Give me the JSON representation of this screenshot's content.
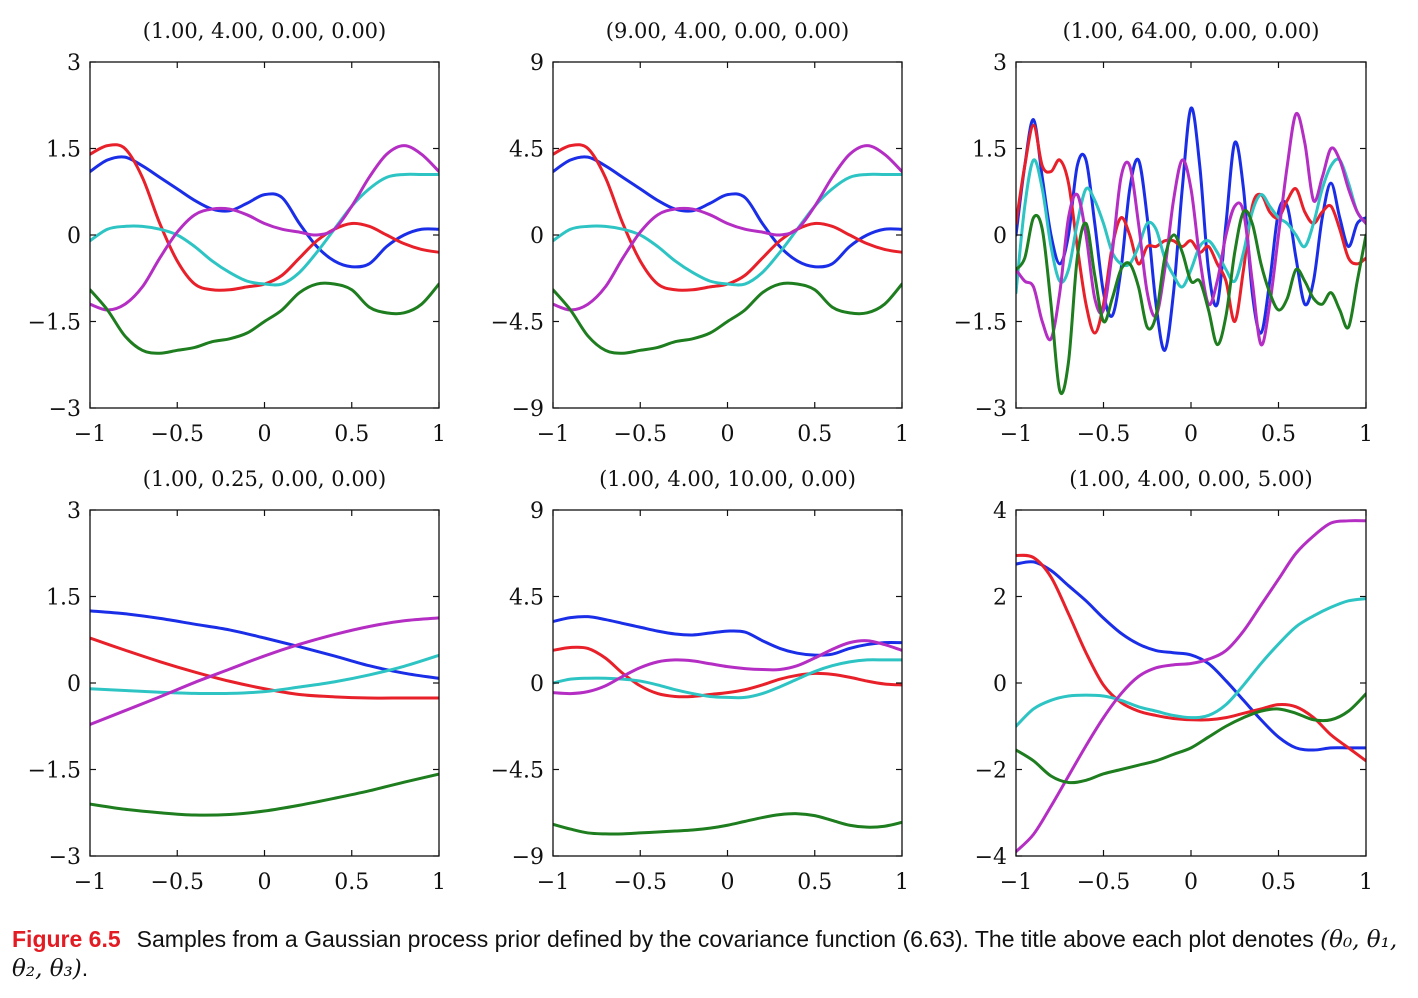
{
  "colors": {
    "blue": "#1a2ee8",
    "red": "#e8202a",
    "cyan": "#2ec4c4",
    "magenta": "#b42ec4",
    "green": "#1e7d1e"
  },
  "chart_data": [
    {
      "type": "line",
      "title": "(1.00, 4.00, 0.00, 0.00)",
      "xlim": [
        -1,
        1
      ],
      "ylim": [
        -3,
        3
      ],
      "xticks": [
        "−1",
        "−0.5",
        "0",
        "0.5",
        "1"
      ],
      "yticks": [
        "3",
        "1.5",
        "0",
        "−1.5",
        "−3"
      ],
      "x": [
        -1,
        -0.9,
        -0.8,
        -0.7,
        -0.6,
        -0.5,
        -0.4,
        -0.3,
        -0.2,
        -0.1,
        0,
        0.1,
        0.2,
        0.3,
        0.4,
        0.5,
        0.6,
        0.7,
        0.8,
        0.9,
        1
      ],
      "series": [
        {
          "color": "blue",
          "values": [
            1.1,
            1.3,
            1.35,
            1.2,
            1.0,
            0.8,
            0.6,
            0.45,
            0.42,
            0.55,
            0.7,
            0.65,
            0.2,
            -0.2,
            -0.45,
            -0.55,
            -0.5,
            -0.2,
            0.0,
            0.1,
            0.1
          ]
        },
        {
          "color": "red",
          "values": [
            1.4,
            1.55,
            1.5,
            1.0,
            0.2,
            -0.45,
            -0.85,
            -0.95,
            -0.95,
            -0.9,
            -0.85,
            -0.7,
            -0.4,
            -0.1,
            0.1,
            0.2,
            0.15,
            0.0,
            -0.15,
            -0.25,
            -0.3
          ]
        },
        {
          "color": "cyan",
          "values": [
            -0.1,
            0.1,
            0.15,
            0.15,
            0.1,
            0.0,
            -0.2,
            -0.45,
            -0.65,
            -0.8,
            -0.85,
            -0.85,
            -0.65,
            -0.3,
            0.1,
            0.5,
            0.8,
            1.0,
            1.05,
            1.05,
            1.05
          ]
        },
        {
          "color": "magenta",
          "values": [
            -1.2,
            -1.3,
            -1.2,
            -0.9,
            -0.4,
            0.05,
            0.35,
            0.45,
            0.45,
            0.35,
            0.2,
            0.1,
            0.05,
            0.0,
            0.1,
            0.5,
            1.0,
            1.4,
            1.55,
            1.4,
            1.1
          ]
        },
        {
          "color": "green",
          "values": [
            -0.95,
            -1.3,
            -1.75,
            -2.0,
            -2.05,
            -2.0,
            -1.95,
            -1.85,
            -1.8,
            -1.7,
            -1.5,
            -1.3,
            -1.0,
            -0.85,
            -0.85,
            -0.95,
            -1.25,
            -1.35,
            -1.35,
            -1.2,
            -0.85
          ]
        }
      ]
    },
    {
      "type": "line",
      "title": "(9.00, 4.00, 0.00, 0.00)",
      "xlim": [
        -1,
        1
      ],
      "ylim": [
        -9,
        9
      ],
      "xticks": [
        "−1",
        "−0.5",
        "0",
        "0.5",
        "1"
      ],
      "yticks": [
        "9",
        "4.5",
        "0",
        "−4.5",
        "−9"
      ],
      "x": [
        -1,
        -0.9,
        -0.8,
        -0.7,
        -0.6,
        -0.5,
        -0.4,
        -0.3,
        -0.2,
        -0.1,
        0,
        0.1,
        0.2,
        0.3,
        0.4,
        0.5,
        0.6,
        0.7,
        0.8,
        0.9,
        1
      ],
      "series": [
        {
          "color": "blue",
          "values": [
            3.3,
            3.9,
            4.05,
            3.6,
            3.0,
            2.4,
            1.8,
            1.35,
            1.26,
            1.65,
            2.1,
            1.95,
            0.6,
            -0.6,
            -1.35,
            -1.65,
            -1.5,
            -0.6,
            0.0,
            0.3,
            0.3
          ]
        },
        {
          "color": "red",
          "values": [
            4.2,
            4.65,
            4.5,
            3.0,
            0.6,
            -1.35,
            -2.55,
            -2.85,
            -2.85,
            -2.7,
            -2.55,
            -2.1,
            -1.2,
            -0.3,
            0.3,
            0.6,
            0.45,
            0.0,
            -0.45,
            -0.75,
            -0.9
          ]
        },
        {
          "color": "cyan",
          "values": [
            -0.3,
            0.3,
            0.45,
            0.45,
            0.3,
            0.0,
            -0.6,
            -1.35,
            -1.95,
            -2.4,
            -2.55,
            -2.55,
            -1.95,
            -0.9,
            0.3,
            1.5,
            2.4,
            3.0,
            3.15,
            3.15,
            3.15
          ]
        },
        {
          "color": "magenta",
          "values": [
            -3.6,
            -3.9,
            -3.6,
            -2.7,
            -1.2,
            0.15,
            1.05,
            1.35,
            1.35,
            1.05,
            0.6,
            0.3,
            0.15,
            0.0,
            0.3,
            1.5,
            3.0,
            4.2,
            4.65,
            4.2,
            3.3
          ]
        },
        {
          "color": "green",
          "values": [
            -2.85,
            -3.9,
            -5.25,
            -6.0,
            -6.15,
            -6.0,
            -5.85,
            -5.55,
            -5.4,
            -5.1,
            -4.5,
            -3.9,
            -3.0,
            -2.55,
            -2.55,
            -2.85,
            -3.75,
            -4.05,
            -4.05,
            -3.6,
            -2.55
          ]
        }
      ]
    },
    {
      "type": "line",
      "title": "(1.00, 64.00, 0.00, 0.00)",
      "xlim": [
        -1,
        1
      ],
      "ylim": [
        -3,
        3
      ],
      "xticks": [
        "−1",
        "−0.5",
        "0",
        "0.5",
        "1"
      ],
      "yticks": [
        "3",
        "1.5",
        "0",
        "−1.5",
        "−3"
      ],
      "x": [
        -1,
        -0.95,
        -0.9,
        -0.85,
        -0.8,
        -0.75,
        -0.7,
        -0.65,
        -0.6,
        -0.55,
        -0.5,
        -0.45,
        -0.4,
        -0.35,
        -0.3,
        -0.25,
        -0.2,
        -0.15,
        -0.1,
        -0.05,
        0,
        0.05,
        0.1,
        0.15,
        0.2,
        0.25,
        0.3,
        0.35,
        0.4,
        0.45,
        0.5,
        0.55,
        0.6,
        0.65,
        0.7,
        0.75,
        0.8,
        0.85,
        0.9,
        0.95,
        1
      ],
      "series": [
        {
          "color": "blue",
          "values": [
            0.0,
            1.2,
            2.0,
            1.0,
            0.0,
            -0.5,
            0.0,
            1.2,
            1.3,
            0.2,
            -1.0,
            -1.4,
            -0.6,
            0.8,
            1.3,
            0.3,
            -1.2,
            -2.0,
            -1.0,
            0.8,
            2.2,
            1.2,
            -0.6,
            -1.2,
            0.2,
            1.6,
            0.8,
            -1.0,
            -1.7,
            -0.8,
            0.4,
            0.5,
            -0.4,
            -1.2,
            -0.8,
            0.3,
            0.9,
            0.3,
            -0.2,
            0.2,
            0.3
          ]
        },
        {
          "color": "red",
          "values": [
            0.2,
            1.2,
            1.9,
            1.2,
            1.1,
            1.3,
            0.9,
            -0.2,
            -1.2,
            -1.7,
            -1.2,
            -0.2,
            0.3,
            0.0,
            -0.5,
            -0.2,
            -0.2,
            -0.1,
            -0.1,
            -0.2,
            -0.1,
            -0.3,
            -0.2,
            -0.5,
            -0.8,
            -1.5,
            -0.6,
            0.5,
            0.7,
            0.4,
            0.3,
            0.6,
            0.8,
            0.4,
            0.2,
            0.4,
            0.5,
            0.1,
            -0.4,
            -0.5,
            -0.4
          ]
        },
        {
          "color": "cyan",
          "values": [
            -1.0,
            0.5,
            1.3,
            0.8,
            -0.2,
            -0.8,
            -0.6,
            0.2,
            0.8,
            0.6,
            0.2,
            -0.3,
            -0.5,
            -0.5,
            -0.2,
            0.2,
            0.1,
            -0.4,
            -0.7,
            -0.9,
            -0.6,
            -0.2,
            -0.1,
            -0.3,
            -0.6,
            -0.8,
            -0.3,
            0.4,
            0.7,
            0.5,
            0.3,
            0.2,
            0.0,
            -0.2,
            0.2,
            0.8,
            1.2,
            1.3,
            0.9,
            0.4,
            0.2
          ]
        },
        {
          "color": "magenta",
          "values": [
            -0.6,
            -0.8,
            -0.9,
            -1.5,
            -1.8,
            -1.0,
            0.3,
            0.7,
            0.0,
            -1.1,
            -1.3,
            -0.3,
            1.0,
            1.2,
            0.2,
            -1.0,
            -1.4,
            -0.6,
            0.6,
            1.3,
            0.8,
            -0.4,
            -1.2,
            -0.8,
            0.0,
            0.5,
            0.4,
            -0.8,
            -1.9,
            -1.2,
            0.0,
            1.2,
            2.1,
            1.6,
            0.6,
            1.0,
            1.5,
            1.3,
            0.8,
            0.4,
            0.2
          ]
        },
        {
          "color": "green",
          "values": [
            -0.6,
            -0.4,
            0.3,
            0.1,
            -1.2,
            -2.7,
            -2.2,
            -0.4,
            0.2,
            -0.7,
            -1.5,
            -1.1,
            -0.6,
            -0.5,
            -0.9,
            -1.6,
            -1.4,
            -0.4,
            0.0,
            -0.3,
            -0.8,
            -0.8,
            -1.3,
            -1.9,
            -1.4,
            -0.3,
            0.4,
            0.2,
            -0.5,
            -1.0,
            -1.3,
            -1.1,
            -0.6,
            -0.8,
            -1.1,
            -1.2,
            -1.0,
            -1.3,
            -1.6,
            -0.8,
            0.0
          ]
        }
      ]
    },
    {
      "type": "line",
      "title": "(1.00, 0.25, 0.00, 0.00)",
      "xlim": [
        -1,
        1
      ],
      "ylim": [
        -3,
        3
      ],
      "xticks": [
        "−1",
        "−0.5",
        "0",
        "0.5",
        "1"
      ],
      "yticks": [
        "3",
        "1.5",
        "0",
        "−1.5",
        "−3"
      ],
      "x": [
        -1,
        -0.8,
        -0.6,
        -0.4,
        -0.2,
        0,
        0.2,
        0.4,
        0.6,
        0.8,
        1
      ],
      "series": [
        {
          "color": "blue",
          "values": [
            1.25,
            1.2,
            1.12,
            1.02,
            0.92,
            0.78,
            0.63,
            0.47,
            0.3,
            0.17,
            0.08
          ]
        },
        {
          "color": "red",
          "values": [
            0.78,
            0.57,
            0.37,
            0.19,
            0.03,
            -0.1,
            -0.2,
            -0.24,
            -0.26,
            -0.26,
            -0.26
          ]
        },
        {
          "color": "cyan",
          "values": [
            -0.1,
            -0.13,
            -0.16,
            -0.18,
            -0.18,
            -0.15,
            -0.07,
            0.02,
            0.14,
            0.29,
            0.48
          ]
        },
        {
          "color": "magenta",
          "values": [
            -0.72,
            -0.48,
            -0.24,
            0.01,
            0.24,
            0.47,
            0.67,
            0.84,
            0.98,
            1.08,
            1.13
          ]
        },
        {
          "color": "green",
          "values": [
            -2.1,
            -2.19,
            -2.25,
            -2.29,
            -2.28,
            -2.22,
            -2.12,
            -2.0,
            -1.87,
            -1.72,
            -1.58
          ]
        }
      ]
    },
    {
      "type": "line",
      "title": "(1.00, 4.00, 10.00, 0.00)",
      "xlim": [
        -1,
        1
      ],
      "ylim": [
        -9,
        9
      ],
      "xticks": [
        "−1",
        "−0.5",
        "0",
        "0.5",
        "1"
      ],
      "yticks": [
        "9",
        "4.5",
        "0",
        "−4.5",
        "−9"
      ],
      "x": [
        -1,
        -0.9,
        -0.8,
        -0.7,
        -0.6,
        -0.5,
        -0.4,
        -0.3,
        -0.2,
        -0.1,
        0,
        0.1,
        0.2,
        0.3,
        0.4,
        0.5,
        0.6,
        0.7,
        0.8,
        0.9,
        1
      ],
      "series": [
        {
          "color": "blue",
          "values": [
            3.2,
            3.4,
            3.45,
            3.3,
            3.1,
            2.9,
            2.7,
            2.55,
            2.5,
            2.6,
            2.7,
            2.65,
            2.2,
            1.8,
            1.55,
            1.45,
            1.5,
            1.8,
            2.0,
            2.1,
            2.1
          ]
        },
        {
          "color": "red",
          "values": [
            1.7,
            1.85,
            1.8,
            1.3,
            0.5,
            -0.15,
            -0.55,
            -0.7,
            -0.7,
            -0.6,
            -0.5,
            -0.35,
            -0.1,
            0.2,
            0.4,
            0.5,
            0.45,
            0.3,
            0.1,
            -0.05,
            -0.1
          ]
        },
        {
          "color": "cyan",
          "values": [
            0.0,
            0.2,
            0.25,
            0.25,
            0.2,
            0.1,
            -0.1,
            -0.35,
            -0.55,
            -0.7,
            -0.75,
            -0.75,
            -0.55,
            -0.2,
            0.2,
            0.6,
            0.9,
            1.1,
            1.2,
            1.2,
            1.2
          ]
        },
        {
          "color": "magenta",
          "values": [
            -0.5,
            -0.55,
            -0.45,
            -0.15,
            0.35,
            0.8,
            1.1,
            1.2,
            1.15,
            1.0,
            0.85,
            0.75,
            0.7,
            0.7,
            0.9,
            1.3,
            1.75,
            2.1,
            2.2,
            2.0,
            1.7
          ]
        },
        {
          "color": "green",
          "values": [
            -7.35,
            -7.6,
            -7.8,
            -7.85,
            -7.85,
            -7.8,
            -7.75,
            -7.7,
            -7.65,
            -7.55,
            -7.4,
            -7.2,
            -7.0,
            -6.85,
            -6.8,
            -6.9,
            -7.15,
            -7.4,
            -7.5,
            -7.45,
            -7.25
          ]
        }
      ]
    },
    {
      "type": "line",
      "title": "(1.00, 4.00, 0.00, 5.00)",
      "xlim": [
        -1,
        1
      ],
      "ylim": [
        -4,
        4
      ],
      "xticks": [
        "−1",
        "−0.5",
        "0",
        "0.5",
        "1"
      ],
      "yticks": [
        "4",
        "2",
        "0",
        "−2",
        "−4"
      ],
      "x": [
        -1,
        -0.9,
        -0.8,
        -0.7,
        -0.6,
        -0.5,
        -0.4,
        -0.3,
        -0.2,
        -0.1,
        0,
        0.1,
        0.2,
        0.3,
        0.4,
        0.5,
        0.6,
        0.7,
        0.8,
        0.9,
        1
      ],
      "series": [
        {
          "color": "blue",
          "values": [
            2.75,
            2.8,
            2.6,
            2.25,
            1.9,
            1.5,
            1.15,
            0.9,
            0.75,
            0.7,
            0.65,
            0.45,
            0.05,
            -0.4,
            -0.85,
            -1.25,
            -1.5,
            -1.55,
            -1.5,
            -1.5,
            -1.5
          ]
        },
        {
          "color": "red",
          "values": [
            2.95,
            2.9,
            2.45,
            1.6,
            0.7,
            -0.05,
            -0.45,
            -0.65,
            -0.75,
            -0.82,
            -0.85,
            -0.85,
            -0.8,
            -0.7,
            -0.6,
            -0.5,
            -0.55,
            -0.8,
            -1.2,
            -1.5,
            -1.8
          ]
        },
        {
          "color": "cyan",
          "values": [
            -1.0,
            -0.6,
            -0.4,
            -0.3,
            -0.28,
            -0.3,
            -0.4,
            -0.55,
            -0.65,
            -0.75,
            -0.8,
            -0.75,
            -0.5,
            -0.05,
            0.45,
            0.9,
            1.3,
            1.55,
            1.75,
            1.9,
            1.95
          ]
        },
        {
          "color": "magenta",
          "values": [
            -3.9,
            -3.5,
            -2.85,
            -2.15,
            -1.45,
            -0.8,
            -0.25,
            0.15,
            0.35,
            0.42,
            0.45,
            0.55,
            0.75,
            1.2,
            1.8,
            2.4,
            3.0,
            3.4,
            3.7,
            3.75,
            3.75
          ]
        },
        {
          "color": "green",
          "values": [
            -1.55,
            -1.8,
            -2.15,
            -2.3,
            -2.25,
            -2.1,
            -2.0,
            -1.9,
            -1.8,
            -1.65,
            -1.5,
            -1.25,
            -1.0,
            -0.8,
            -0.65,
            -0.6,
            -0.7,
            -0.85,
            -0.85,
            -0.65,
            -0.25
          ]
        }
      ]
    }
  ],
  "caption": {
    "figure_label": "Figure 6.5",
    "text": "Samples from a Gaussian process prior defined by the covariance function (6.63). The title above each plot denotes",
    "math": "(θ₀, θ₁, θ₂, θ₃)",
    "end": "."
  }
}
